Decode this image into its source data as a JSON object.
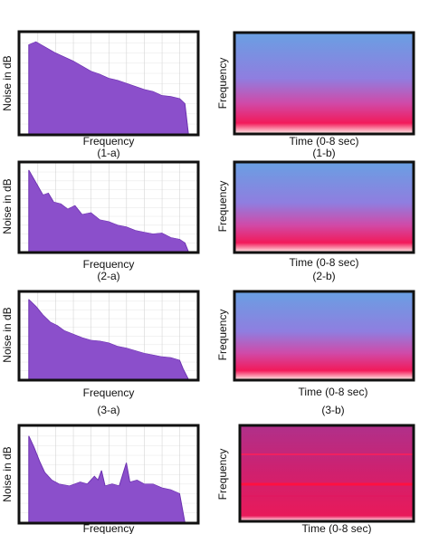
{
  "figure": {
    "panels": [
      {
        "y_label": "Noise in dB",
        "x_label": "Frequency",
        "caption": "(1-a)"
      },
      {
        "y_label": "Frequency",
        "x_label": "Time (0-8 sec)",
        "caption": "(1-b)"
      },
      {
        "y_label": "Noise in dB",
        "x_label": "Frequency",
        "caption": "(2-a)"
      },
      {
        "y_label": "Frequency",
        "x_label": "Time (0-8 sec)",
        "caption": "(2-b)"
      },
      {
        "y_label": "Noise in dB",
        "x_label": "Frequency",
        "caption": "(3-a)"
      },
      {
        "y_label": "Frequency",
        "x_label": "Time (0-8 sec)",
        "caption": "(3-b)"
      },
      {
        "y_label": "Noise in dB",
        "x_label": "Frequency"
      },
      {
        "y_label": "Frequency",
        "x_label": "Time (0-8 sec)"
      }
    ]
  }
}
